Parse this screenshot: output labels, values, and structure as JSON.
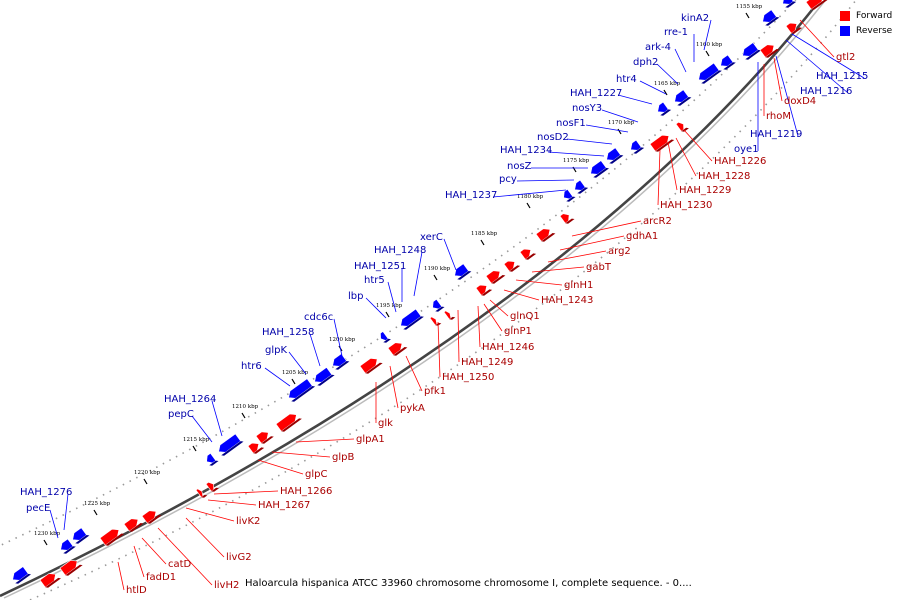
{
  "legend": [
    {
      "label": "Forward",
      "color": "#ff0000"
    },
    {
      "label": "Reverse",
      "color": "#0000ff"
    }
  ],
  "caption": "Haloarcula hispanica ATCC 33960 chromosome chromosome I, complete sequence. - 0....",
  "ticks": [
    "1155 kbp",
    "1160 kbp",
    "1165 kbp",
    "1170 kbp",
    "1175 kbp",
    "1180 kbp",
    "1185 kbp",
    "1190 kbp",
    "1195 kbp",
    "1200 kbp",
    "1205 kbp",
    "1210 kbp",
    "1215 kbp",
    "1220 kbp",
    "1225 kbp",
    "1230 kbp"
  ],
  "reverse_genes": [
    "kinA2",
    "rre-1",
    "ark-4",
    "dph2",
    "htr4",
    "HAH_1227",
    "nosY3",
    "nosF1",
    "nosD2",
    "HAH_1234",
    "nosZ",
    "pcy",
    "HAH_1237",
    "xerC",
    "HAH_1248",
    "HAH_1251",
    "htr5",
    "lbp",
    "cdc6c",
    "HAH_1258",
    "glpK",
    "htr6",
    "HAH_1264",
    "pepC",
    "HAH_1276",
    "pecE",
    "HAH_1215",
    "HAH_1216",
    "HAH_1219",
    "oye1"
  ],
  "forward_genes": [
    "gtl2",
    "doxD4",
    "rhoM",
    "HAH_1226",
    "HAH_1228",
    "HAH_1229",
    "HAH_1230",
    "arcR2",
    "gdhA1",
    "arg2",
    "gabT",
    "glnH1",
    "HAH_1243",
    "glnQ1",
    "glnP1",
    "HAH_1246",
    "HAH_1249",
    "HAH_1250",
    "pfk1",
    "pykA",
    "glk",
    "glpA1",
    "glpB",
    "glpC",
    "HAH_1266",
    "HAH_1267",
    "livK2",
    "livG2",
    "livH2",
    "catD",
    "fadD1",
    "htlD"
  ]
}
